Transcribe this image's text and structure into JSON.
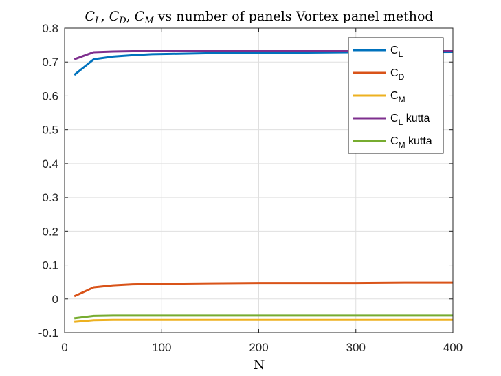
{
  "chart_data": {
    "type": "line",
    "title": "C_L, C_D, C_M vs number of panels Vortex panel method",
    "title_parts": {
      "t1": "C",
      "t1_sub": "L",
      "sep1": ", ",
      "t2": "C",
      "t2_sub": "D",
      "sep2": ", ",
      "t3": "C",
      "t3_sub": "M",
      "rest": " vs number of panels Vortex panel method"
    },
    "xlabel": "N",
    "ylabel": "",
    "xlim": [
      0,
      400
    ],
    "ylim": [
      -0.1,
      0.8
    ],
    "xticks": [
      0,
      100,
      200,
      300,
      400
    ],
    "xtick_labels": [
      "0",
      "100",
      "200",
      "300",
      "400"
    ],
    "yticks": [
      -0.1,
      0,
      0.1,
      0.2,
      0.3,
      0.4,
      0.5,
      0.6,
      0.7,
      0.8
    ],
    "ytick_labels": [
      "-0.1",
      "0",
      "0.1",
      "0.2",
      "0.3",
      "0.4",
      "0.5",
      "0.6",
      "0.7",
      "0.8"
    ],
    "grid": true,
    "legend_position": "top-right",
    "x": [
      10,
      30,
      50,
      70,
      90,
      110,
      150,
      200,
      250,
      300,
      350,
      400
    ],
    "series": [
      {
        "name": "C_L",
        "label_main": "C",
        "label_sub": "L",
        "label_suffix": "",
        "color": "#0072BD",
        "values": [
          0.662,
          0.708,
          0.716,
          0.72,
          0.723,
          0.724,
          0.726,
          0.727,
          0.728,
          0.729,
          0.729,
          0.73
        ]
      },
      {
        "name": "C_D",
        "label_main": "C",
        "label_sub": "D",
        "label_suffix": "",
        "color": "#D95319",
        "values": [
          0.008,
          0.034,
          0.04,
          0.043,
          0.044,
          0.045,
          0.046,
          0.047,
          0.047,
          0.047,
          0.048,
          0.048
        ]
      },
      {
        "name": "C_M",
        "label_main": "C",
        "label_sub": "M",
        "label_suffix": "",
        "color": "#EDB120",
        "values": [
          -0.068,
          -0.063,
          -0.062,
          -0.062,
          -0.062,
          -0.062,
          -0.062,
          -0.062,
          -0.062,
          -0.062,
          -0.062,
          -0.062
        ]
      },
      {
        "name": "C_L kutta",
        "label_main": "C",
        "label_sub": "L",
        "label_suffix": " kutta",
        "color": "#7E2F8E",
        "values": [
          0.708,
          0.729,
          0.731,
          0.732,
          0.732,
          0.732,
          0.732,
          0.732,
          0.732,
          0.732,
          0.732,
          0.732
        ]
      },
      {
        "name": "C_M kutta",
        "label_main": "C",
        "label_sub": "M",
        "label_suffix": " kutta",
        "color": "#77AC30",
        "values": [
          -0.057,
          -0.05,
          -0.049,
          -0.049,
          -0.049,
          -0.049,
          -0.049,
          -0.049,
          -0.049,
          -0.049,
          -0.049,
          -0.049
        ]
      }
    ]
  }
}
